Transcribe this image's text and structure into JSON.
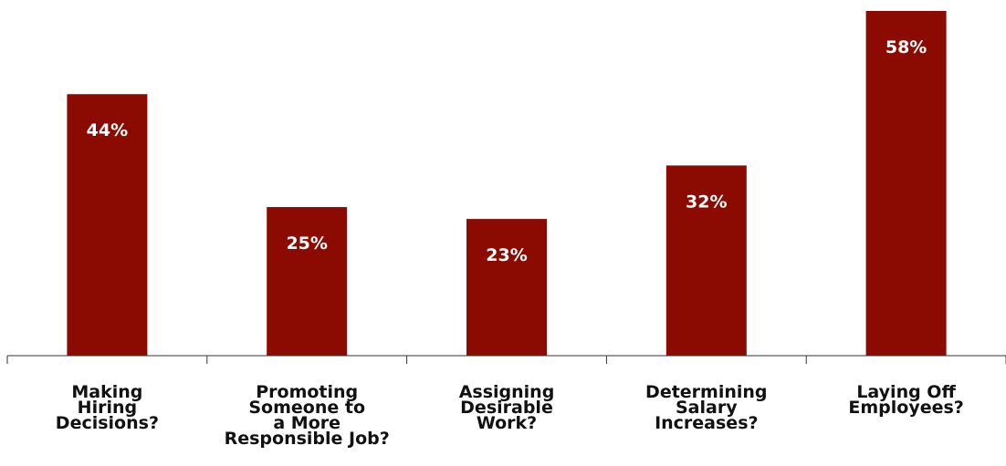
{
  "chart_data": {
    "type": "bar",
    "categories": [
      "Making\nHiring\nDecisions?",
      "Promoting\nSomeone to\na More\nResponsible Job?",
      "Assigning\nDesirable\nWork?",
      "Determining\nSalary\nIncreases?",
      "Laying Off\nEmployees?"
    ],
    "values": [
      44,
      25,
      23,
      32,
      58
    ],
    "value_labels": [
      "44%",
      "25%",
      "23%",
      "32%",
      "58%"
    ],
    "ylim": [
      0,
      58
    ],
    "bar_color": "#8b0b02",
    "axis_color": "#333333",
    "grid": false,
    "legend": "none"
  }
}
